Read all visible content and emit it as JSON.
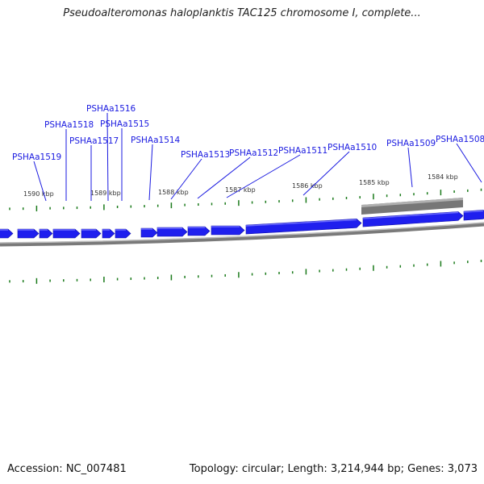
{
  "title": "Pseudoalteromonas haloplanktis TAC125 chromosome I, complete...",
  "footer": {
    "accession": "Accession: NC_007481",
    "summary": "Topology: circular; Length: 3,214,944 bp; Genes: 3,073"
  },
  "colors": {
    "gene": "#1f1fee",
    "gene_edge": "#1212a8",
    "backbone": "#8c8c8c",
    "tick": "#1a7a1a",
    "label": "#1a1ae0",
    "selection": "#777777"
  },
  "scale_labels": [
    "1590 kbp",
    "1589 kbp",
    "1588 kbp",
    "1587 kbp",
    "1586 kbp",
    "1585 kbp",
    "1584 kbp"
  ],
  "gene_labels": [
    "PSHAa1519",
    "PSHAa1518",
    "PSHAa1517",
    "PSHAa1516",
    "PSHAa1515",
    "PSHAa1514",
    "PSHAa1513",
    "PSHAa1512",
    "PSHAa1511",
    "PSHAa1510",
    "PSHAa1509",
    "PSHAa1508"
  ]
}
